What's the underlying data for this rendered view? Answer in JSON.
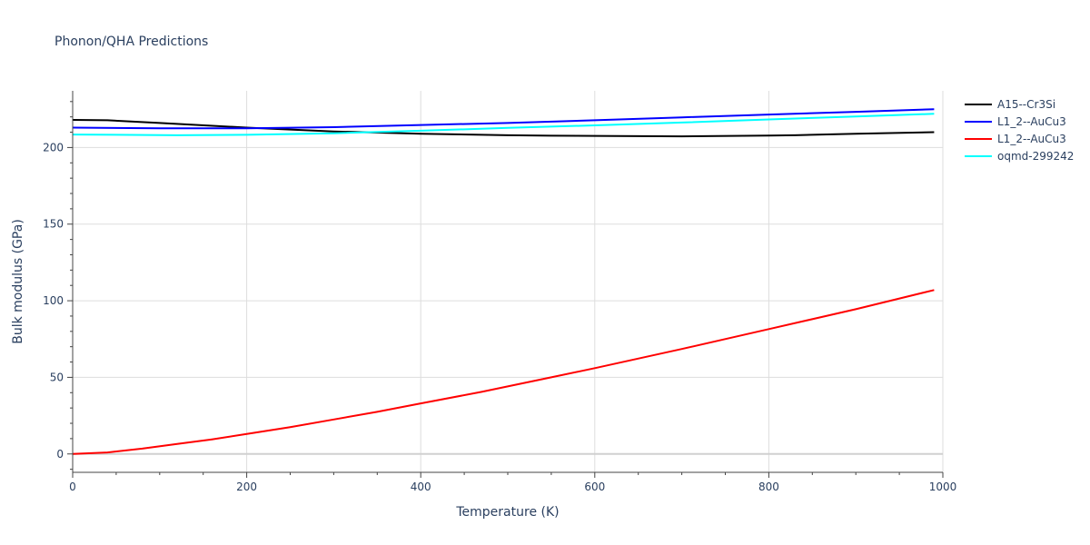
{
  "chart_data": {
    "type": "line",
    "title": "Phonon/QHA Predictions",
    "xlabel": "Temperature (K)",
    "ylabel": "Bulk modulus (GPa)",
    "xlim": [
      0,
      1000
    ],
    "ylim": [
      -12,
      237
    ],
    "xticks": [
      0,
      200,
      400,
      600,
      800,
      1000
    ],
    "xtick_labels": [
      "0",
      "200",
      "400",
      "600",
      "800",
      "1000"
    ],
    "yticks": [
      0,
      50,
      100,
      150,
      200
    ],
    "ytick_labels": [
      "0",
      "50",
      "100",
      "150",
      "200"
    ],
    "grid": true,
    "legend_position": "top-right",
    "series": [
      {
        "name": "A15--Cr3Si",
        "color": "#000000",
        "x": [
          0,
          40,
          100,
          200,
          300,
          400,
          500,
          550,
          600,
          700,
          800,
          830,
          900,
          990
        ],
        "y": [
          218,
          217.8,
          216,
          213,
          210.5,
          209,
          208,
          207.7,
          207.6,
          207.3,
          207.8,
          208,
          209,
          210
        ]
      },
      {
        "name": "L1_2--AuCu3",
        "color": "#0000ff",
        "x": [
          0,
          100,
          200,
          300,
          400,
          500,
          600,
          700,
          800,
          900,
          990
        ],
        "y": [
          213,
          212.5,
          212.5,
          213.3,
          214.7,
          216,
          217.8,
          219.7,
          221.5,
          223.3,
          225
        ]
      },
      {
        "name": "L1_2--AuCu3",
        "color": "#ff0000",
        "x": [
          0,
          40,
          80,
          120,
          160,
          200,
          250,
          300,
          350,
          400,
          470,
          550,
          600,
          700,
          800,
          900,
          990
        ],
        "y": [
          0,
          1,
          3.5,
          6.5,
          9.5,
          13,
          17.5,
          22.5,
          27.5,
          33,
          40.5,
          50,
          56,
          68.5,
          81.5,
          94.5,
          107
        ]
      },
      {
        "name": "oqmd-299242",
        "color": "#00ffff",
        "x": [
          0,
          120,
          200,
          300,
          400,
          500,
          600,
          700,
          800,
          900,
          990
        ],
        "y": [
          208.5,
          208,
          208.3,
          209.3,
          211,
          212.8,
          214.5,
          216.3,
          218.3,
          220.3,
          222
        ]
      }
    ]
  }
}
